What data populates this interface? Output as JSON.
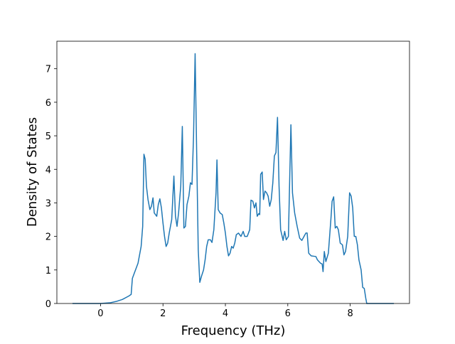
{
  "chart_data": {
    "type": "line",
    "xlabel": "Frequency (THz)",
    "ylabel": "Density of States",
    "color": "#1f77b4",
    "x": [
      -0.9,
      0,
      0.3,
      0.5,
      0.7,
      0.9,
      0.98,
      1.02,
      1.1,
      1.2,
      1.3,
      1.35,
      1.39,
      1.43,
      1.47,
      1.52,
      1.58,
      1.63,
      1.68,
      1.72,
      1.8,
      1.85,
      1.9,
      1.95,
      2.0,
      2.05,
      2.1,
      2.15,
      2.2,
      2.28,
      2.35,
      2.4,
      2.45,
      2.5,
      2.57,
      2.62,
      2.67,
      2.72,
      2.77,
      2.83,
      2.88,
      2.93,
      2.98,
      3.03,
      3.08,
      3.13,
      3.18,
      3.23,
      3.3,
      3.35,
      3.4,
      3.45,
      3.52,
      3.57,
      3.63,
      3.7,
      3.73,
      3.77,
      3.83,
      3.9,
      3.95,
      4.0,
      4.05,
      4.1,
      4.15,
      4.2,
      4.25,
      4.3,
      4.35,
      4.42,
      4.5,
      4.57,
      4.62,
      4.7,
      4.78,
      4.82,
      4.88,
      4.93,
      4.98,
      5.02,
      5.07,
      5.1,
      5.13,
      5.18,
      5.22,
      5.27,
      5.32,
      5.37,
      5.42,
      5.47,
      5.52,
      5.57,
      5.62,
      5.67,
      5.72,
      5.77,
      5.85,
      5.9,
      5.95,
      6.02,
      6.1,
      6.15,
      6.22,
      6.3,
      6.38,
      6.45,
      6.52,
      6.58,
      6.62,
      6.67,
      6.75,
      6.9,
      6.95,
      7.05,
      7.1,
      7.13,
      7.17,
      7.22,
      7.3,
      7.38,
      7.42,
      7.47,
      7.52,
      7.57,
      7.62,
      7.68,
      7.75,
      7.8,
      7.85,
      7.92,
      7.98,
      8.03,
      8.08,
      8.13,
      8.18,
      8.23,
      8.28,
      8.35,
      8.4,
      8.45,
      8.5,
      8.53,
      9.4
    ],
    "values": [
      0,
      0,
      0.02,
      0.06,
      0.12,
      0.22,
      0.27,
      0.75,
      0.95,
      1.2,
      1.7,
      2.3,
      4.45,
      4.3,
      3.5,
      3.1,
      2.8,
      2.9,
      3.15,
      2.7,
      2.6,
      2.95,
      3.12,
      2.85,
      2.4,
      2.0,
      1.7,
      1.8,
      2.1,
      2.5,
      3.8,
      2.6,
      2.3,
      2.7,
      3.5,
      5.28,
      2.25,
      2.3,
      2.95,
      3.2,
      3.6,
      3.55,
      5.0,
      7.45,
      4.5,
      1.6,
      0.63,
      0.8,
      1.0,
      1.3,
      1.7,
      1.9,
      1.9,
      1.82,
      2.2,
      3.3,
      4.28,
      2.8,
      2.7,
      2.65,
      2.4,
      2.1,
      1.7,
      1.42,
      1.5,
      1.7,
      1.65,
      1.8,
      2.05,
      2.1,
      2.0,
      2.15,
      2.0,
      2.0,
      2.2,
      3.08,
      3.05,
      2.85,
      3.0,
      2.6,
      2.68,
      2.65,
      3.85,
      3.92,
      3.1,
      3.35,
      3.3,
      3.2,
      2.9,
      3.1,
      3.6,
      4.4,
      4.5,
      5.55,
      3.5,
      2.2,
      1.88,
      2.15,
      1.9,
      2.0,
      5.33,
      3.3,
      2.7,
      2.3,
      1.95,
      1.88,
      2.0,
      2.1,
      2.1,
      1.5,
      1.42,
      1.4,
      1.3,
      1.2,
      1.18,
      0.95,
      1.55,
      1.25,
      1.5,
      2.5,
      3.05,
      3.18,
      2.25,
      2.3,
      2.2,
      1.8,
      1.75,
      1.45,
      1.55,
      2.0,
      3.3,
      3.2,
      2.85,
      2.0,
      2.0,
      1.75,
      1.3,
      1.0,
      0.48,
      0.45,
      0.15,
      0,
      0
    ],
    "xlim": [
      -1.4,
      9.9
    ],
    "xticks": [
      0,
      2,
      4,
      6,
      8
    ],
    "ylim": [
      0,
      7.82
    ],
    "yticks": [
      0,
      1,
      2,
      3,
      4,
      5,
      6,
      7
    ],
    "grid": false
  }
}
